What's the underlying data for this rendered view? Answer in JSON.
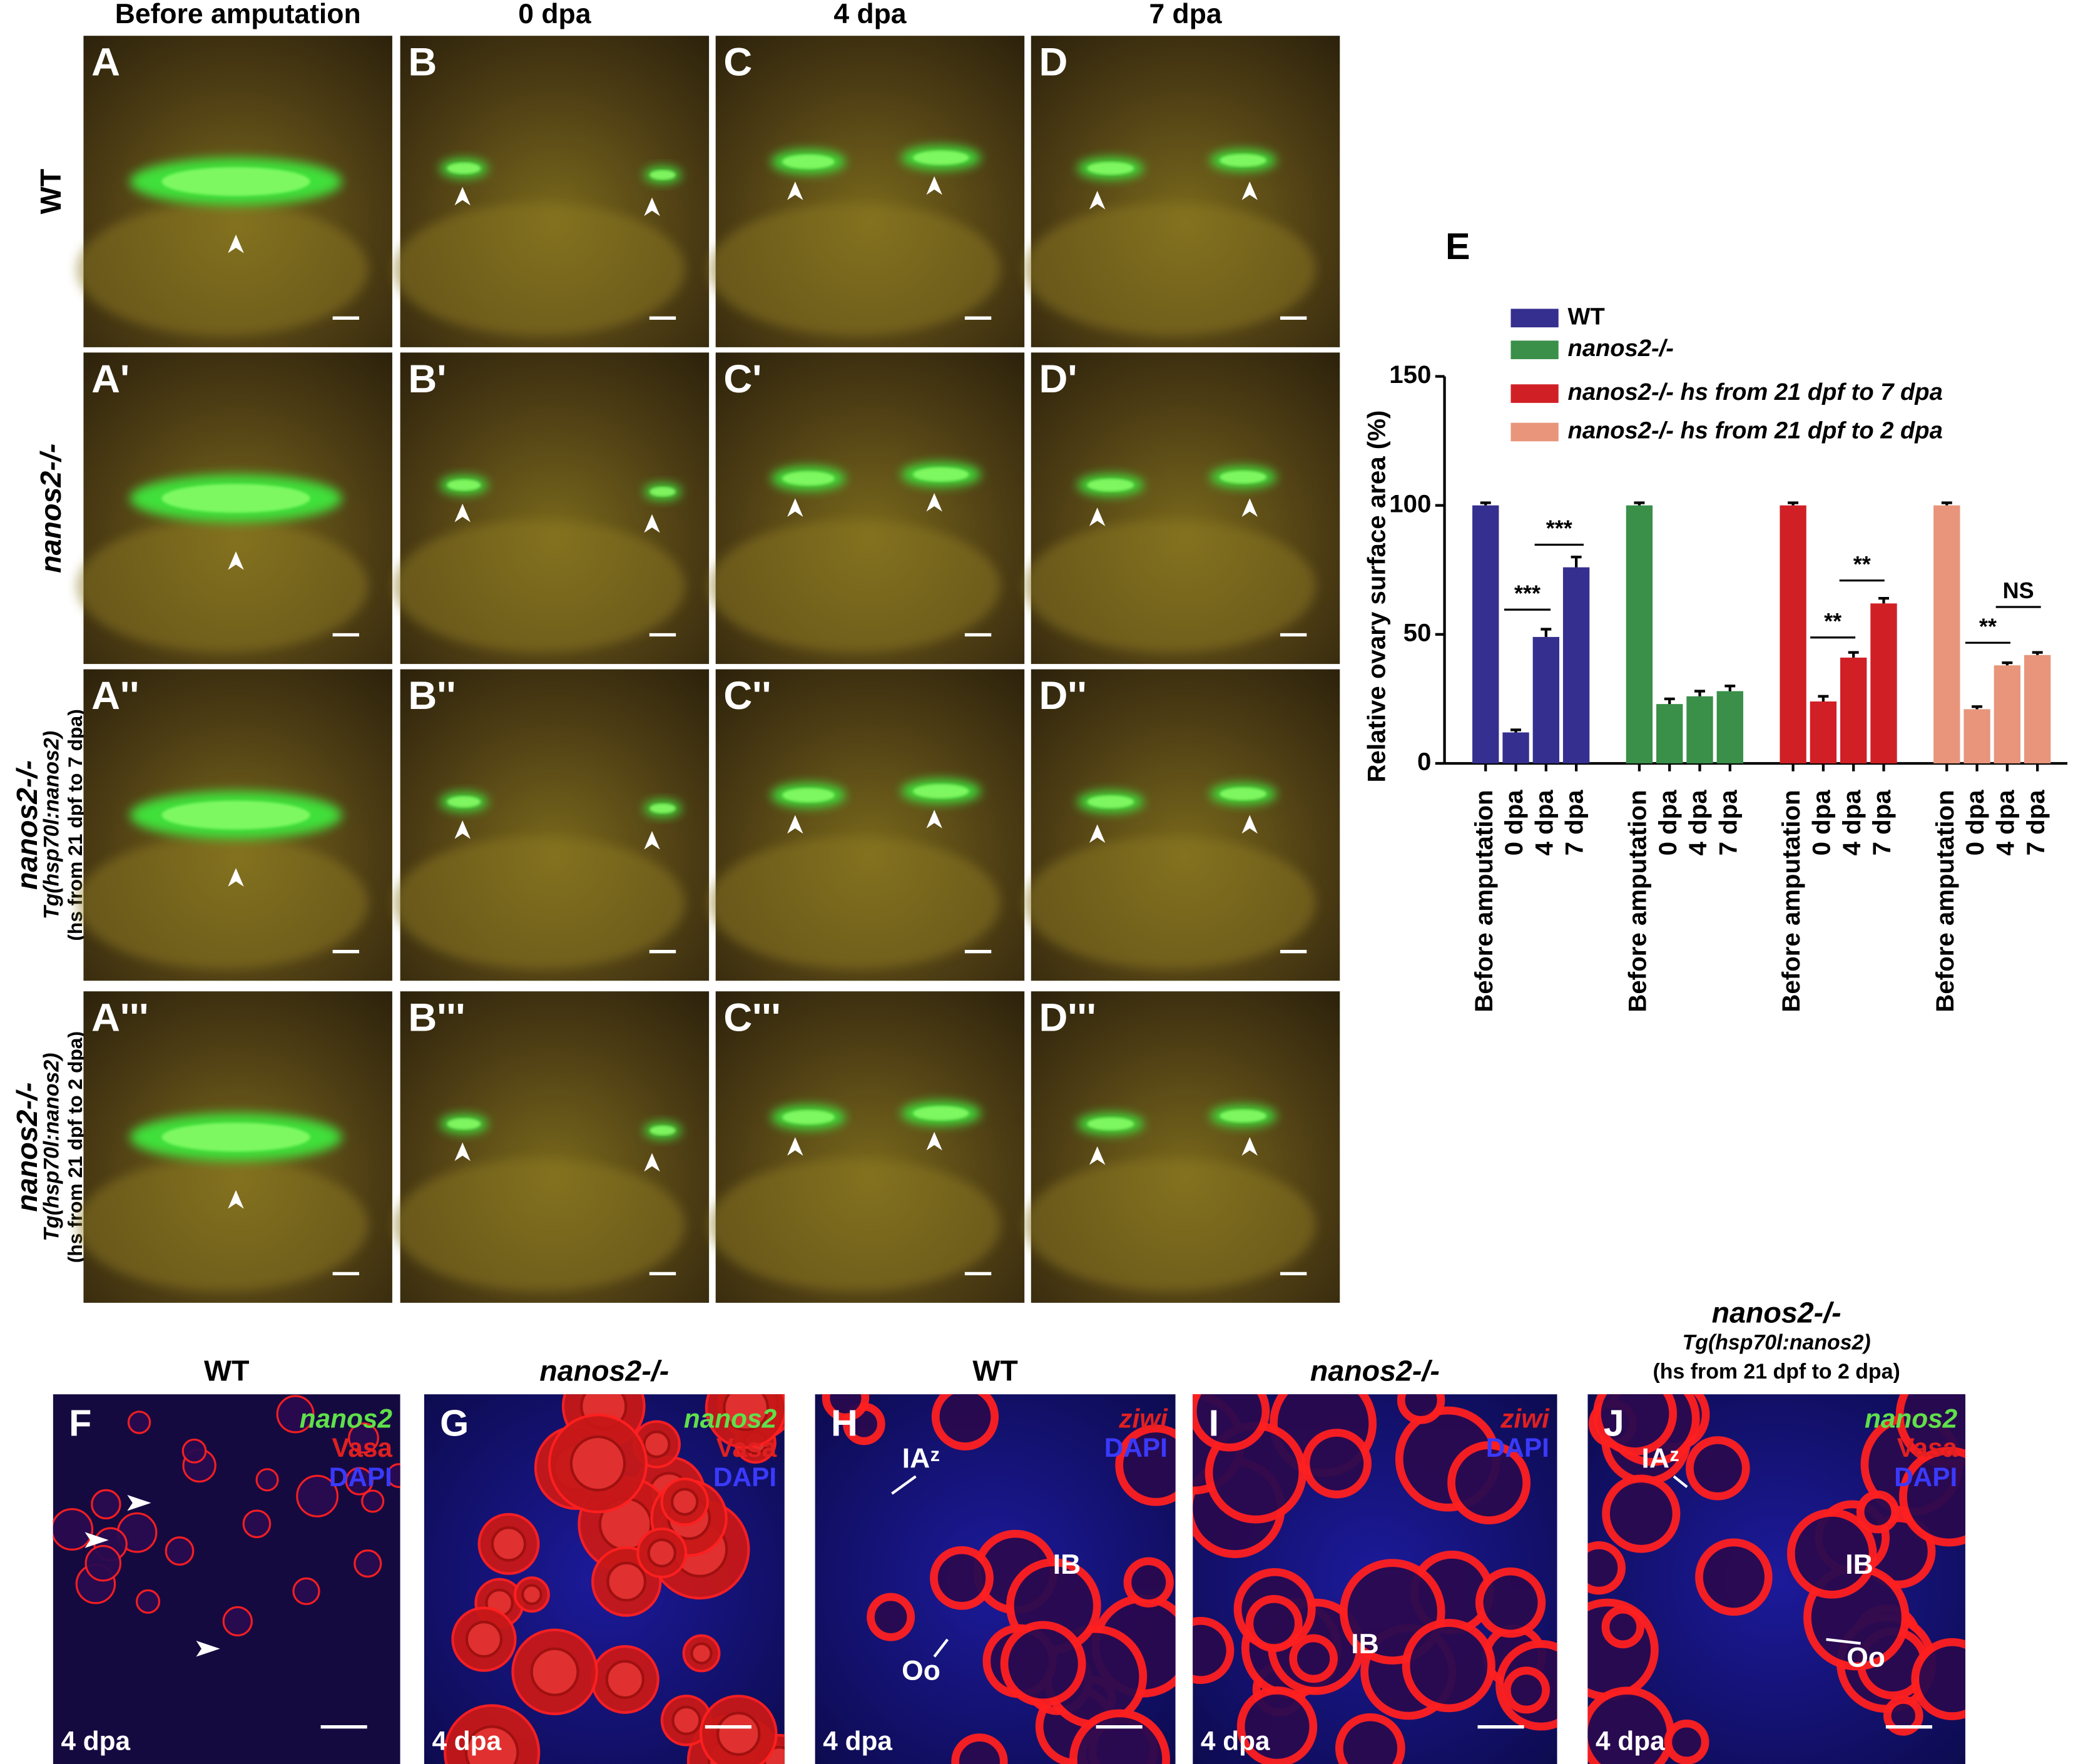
{
  "column_headers": [
    "Before amputation",
    "0 dpa",
    "4 dpa",
    "7 dpa"
  ],
  "row_labels": [
    [
      "WT"
    ],
    [
      "nanos2-/-"
    ],
    [
      "nanos2-/-",
      "Tg(hsp70l:nanos2)",
      "(hs from 21 dpf to 7 dpa)"
    ],
    [
      "nanos2-/-",
      "Tg(hsp70l:nanos2)",
      "(hs from 21 dpf to 2 dpa)"
    ]
  ],
  "image_panels": [
    "A",
    "B",
    "C",
    "D",
    "A'",
    "B'",
    "C'",
    "D'",
    "A''",
    "B''",
    "C''",
    "D''",
    "A'''",
    "B'''",
    "C'''",
    "D'''"
  ],
  "chart_data": {
    "type": "bar",
    "panel_label": "E",
    "y_label": "Relative ovary surface area (%)",
    "categories": [
      "Before amputation",
      "0 dpa",
      "4 dpa",
      "7 dpa"
    ],
    "series": [
      {
        "name": "WT",
        "color": "#352f8f",
        "values": [
          100,
          12,
          49,
          76
        ],
        "errors": [
          1,
          1,
          3,
          4
        ]
      },
      {
        "name": "nanos2-/-",
        "color": "#3a8f49",
        "values": [
          100,
          23,
          26,
          28
        ],
        "errors": [
          1,
          2,
          2,
          2
        ]
      },
      {
        "name": "nanos2-/-  hs from 21 dpf to 7 dpa",
        "color": "#d11f26",
        "values": [
          100,
          24,
          41,
          62
        ],
        "errors": [
          1,
          2,
          2,
          2
        ]
      },
      {
        "name": "nanos2-/-  hs from 21 dpf to 2 dpa",
        "color": "#e8957b",
        "values": [
          100,
          21,
          38,
          42
        ],
        "errors": [
          1,
          1,
          1,
          1
        ]
      }
    ],
    "ylim": [
      0,
      150
    ],
    "yticks": [
      0,
      50,
      100,
      150
    ],
    "annotations": [
      "***",
      "***",
      "**",
      "**",
      "**",
      "NS"
    ]
  },
  "section_panels": [
    {
      "label": "F",
      "title": [
        "WT"
      ],
      "stains": [
        "nanos2",
        "Vasa",
        "DAPI"
      ],
      "annotations": [],
      "stage": "4 dpa"
    },
    {
      "label": "G",
      "title": [
        "nanos2-/-"
      ],
      "stains": [
        "nanos2",
        "Vasa",
        "DAPI"
      ],
      "annotations": [],
      "stage": "4 dpa"
    },
    {
      "label": "H",
      "title": [
        "WT"
      ],
      "stains": [
        "ziwi",
        "DAPI"
      ],
      "annotations": [
        "IAᶻ",
        "IB",
        "Oo"
      ],
      "stage": "4 dpa"
    },
    {
      "label": "I",
      "title": [
        "nanos2-/-"
      ],
      "stains": [
        "ziwi",
        "DAPI"
      ],
      "annotations": [
        "IB"
      ],
      "stage": "4 dpa"
    },
    {
      "label": "J",
      "title": [
        "nanos2-/-",
        "Tg(hsp70l:nanos2)",
        "(hs from 21 dpf to 2 dpa)"
      ],
      "stains": [
        "nanos2",
        "Vasa",
        "DAPI"
      ],
      "annotations": [
        "IAᶻ",
        "IB",
        "Oo"
      ],
      "stage": "4 dpa"
    }
  ]
}
